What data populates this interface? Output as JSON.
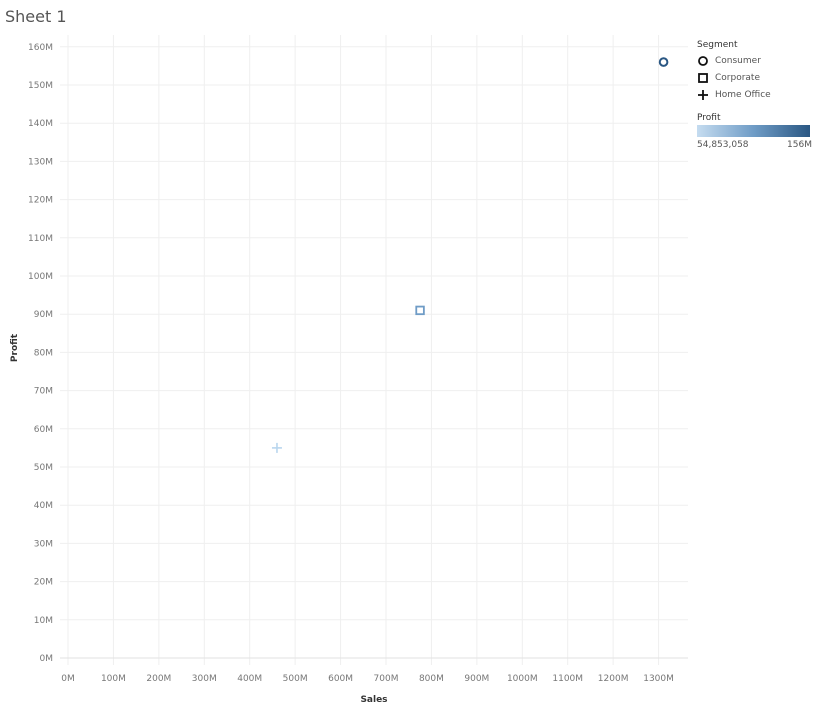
{
  "sheet": {
    "title": "Sheet 1"
  },
  "legend": {
    "shape_title": "Segment",
    "items": [
      {
        "label": "Consumer",
        "shape": "circle"
      },
      {
        "label": "Corporate",
        "shape": "square"
      },
      {
        "label": "Home Office",
        "shape": "plus"
      }
    ],
    "color_title": "Profit",
    "color_min_label": "54,853,058",
    "color_max_label": "156M",
    "colors": [
      "#c5dcf0",
      "#6f9cc6",
      "#2a5783"
    ]
  },
  "chart_data": {
    "type": "scatter",
    "xlabel": "Sales",
    "ylabel": "Profit",
    "xlim": [
      0,
      1400
    ],
    "ylim": [
      0,
      165
    ],
    "x_ticks": [
      0,
      100,
      200,
      300,
      400,
      500,
      600,
      700,
      800,
      900,
      1000,
      1100,
      1200,
      1300
    ],
    "x_tick_labels": [
      "0M",
      "100M",
      "200M",
      "300M",
      "400M",
      "500M",
      "600M",
      "700M",
      "800M",
      "900M",
      "1000M",
      "1100M",
      "1200M",
      "1300M"
    ],
    "y_ticks": [
      0,
      10,
      20,
      30,
      40,
      50,
      60,
      70,
      80,
      90,
      100,
      110,
      120,
      130,
      140,
      150,
      160
    ],
    "y_tick_labels": [
      "0M",
      "10M",
      "20M",
      "30M",
      "40M",
      "50M",
      "60M",
      "70M",
      "80M",
      "90M",
      "100M",
      "110M",
      "120M",
      "130M",
      "140M",
      "150M",
      "160M"
    ],
    "grid": true,
    "points": [
      {
        "segment": "Consumer",
        "shape": "circle",
        "x": 1311,
        "y": 156,
        "color": "#2a5783"
      },
      {
        "segment": "Corporate",
        "shape": "square",
        "x": 775,
        "y": 91,
        "color": "#6f9cc6"
      },
      {
        "segment": "Home Office",
        "shape": "plus",
        "x": 460,
        "y": 55,
        "color": "#b9d6ee"
      }
    ]
  }
}
